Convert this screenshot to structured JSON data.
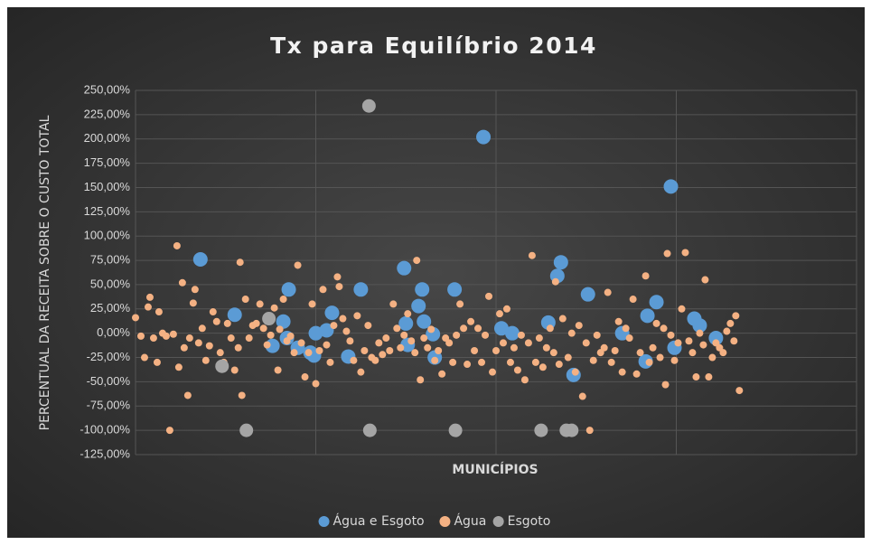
{
  "chart_data": {
    "type": "scatter",
    "title": "Tx para Equilíbrio 2014",
    "x_label": "MUNICÍPIOS",
    "y_label": "PERCENTUAL DA RECEITA SOBRE O CUSTO TOTAL",
    "xlim": [
      0,
      400
    ],
    "xticks": [
      0,
      100,
      200,
      300,
      400
    ],
    "ylim": [
      -125,
      250
    ],
    "yticks": [
      {
        "value": 250,
        "label": "250,00%"
      },
      {
        "value": 225,
        "label": "225,00%"
      },
      {
        "value": 200,
        "label": "200,00%"
      },
      {
        "value": 175,
        "label": "175,00%"
      },
      {
        "value": 150,
        "label": "150,00%"
      },
      {
        "value": 125,
        "label": "125,00%"
      },
      {
        "value": 100,
        "label": "100,00%"
      },
      {
        "value": 75,
        "label": "75,00%"
      },
      {
        "value": 50,
        "label": "50,00%"
      },
      {
        "value": 25,
        "label": "25,00%"
      },
      {
        "value": 0,
        "label": "0,00%"
      },
      {
        "value": -25,
        "label": "-25,00%"
      },
      {
        "value": -50,
        "label": "-50,00%"
      },
      {
        "value": -75,
        "label": "-75,00%"
      },
      {
        "value": -100,
        "label": "-100,00%"
      },
      {
        "value": -125,
        "label": "-125,00%"
      }
    ],
    "grid": true,
    "legend": "bottom",
    "series": [
      {
        "name": "Água e Esgoto",
        "color": "#5b9bd5",
        "x": [
          36,
          55,
          76,
          82,
          85,
          84,
          90,
          97,
          99,
          100,
          106,
          109,
          118,
          125,
          149,
          150,
          151,
          157,
          159,
          160,
          166,
          165,
          177,
          193,
          203,
          209,
          229,
          234,
          236,
          243,
          251,
          270,
          283,
          284,
          289,
          297,
          299,
          310,
          313,
          322
        ],
        "values": [
          76,
          19,
          -13,
          12,
          45,
          -5,
          -15,
          -20,
          -23,
          0,
          3,
          21,
          -24,
          45,
          67,
          10,
          -12,
          28,
          45,
          12,
          -25,
          -1,
          45,
          202,
          5,
          0,
          11,
          59,
          73,
          -43,
          40,
          0,
          -29,
          18,
          32,
          151,
          -15,
          15,
          8,
          -5
        ]
      },
      {
        "name": "Água",
        "color": "#f4b183",
        "x": [
          0,
          3,
          5,
          7,
          8,
          10,
          12,
          13,
          15,
          17,
          19,
          21,
          23,
          24,
          26,
          27,
          29,
          30,
          32,
          33,
          35,
          37,
          39,
          41,
          43,
          45,
          47,
          49,
          51,
          53,
          55,
          57,
          58,
          59,
          61,
          63,
          65,
          67,
          69,
          71,
          73,
          75,
          77,
          79,
          80,
          82,
          84,
          86,
          88,
          90,
          92,
          94,
          96,
          98,
          100,
          102,
          104,
          106,
          108,
          110,
          112,
          113,
          115,
          117,
          119,
          121,
          123,
          125,
          127,
          129,
          131,
          133,
          135,
          137,
          139,
          141,
          143,
          145,
          147,
          149,
          151,
          153,
          155,
          156,
          158,
          160,
          162,
          164,
          166,
          168,
          170,
          172,
          174,
          176,
          178,
          180,
          182,
          184,
          186,
          188,
          190,
          192,
          194,
          196,
          198,
          200,
          202,
          204,
          206,
          208,
          210,
          212,
          214,
          216,
          218,
          220,
          222,
          224,
          226,
          228,
          230,
          232,
          233,
          235,
          237,
          238,
          240,
          242,
          244,
          246,
          248,
          250,
          252,
          254,
          256,
          258,
          260,
          262,
          264,
          266,
          268,
          270,
          272,
          274,
          276,
          278,
          280,
          283,
          285,
          287,
          289,
          291,
          293,
          294,
          295,
          297,
          299,
          301,
          303,
          305,
          307,
          309,
          311,
          313,
          315,
          316,
          318,
          320,
          322,
          324,
          326,
          328,
          330,
          332,
          333,
          335
        ],
        "values": [
          16,
          -3,
          -25,
          27,
          37,
          -5,
          -30,
          22,
          0,
          -3,
          -100,
          -1,
          90,
          -35,
          52,
          -15,
          -64,
          -5,
          31,
          45,
          -10,
          5,
          -28,
          -13,
          22,
          12,
          -20,
          -30,
          10,
          -5,
          -38,
          -15,
          73,
          -64,
          35,
          -5,
          8,
          10,
          30,
          5,
          -12,
          -2,
          26,
          -38,
          4,
          35,
          -8,
          -3,
          -20,
          70,
          -10,
          -45,
          -20,
          30,
          -52,
          -18,
          45,
          -12,
          -30,
          8,
          58,
          48,
          15,
          2,
          -8,
          -28,
          18,
          -40,
          -18,
          8,
          -25,
          -28,
          -10,
          -22,
          -5,
          -18,
          30,
          5,
          -15,
          -2,
          20,
          -8,
          -20,
          75,
          -48,
          -5,
          -15,
          4,
          -28,
          -18,
          -42,
          -5,
          -10,
          -30,
          -2,
          30,
          5,
          -32,
          12,
          -18,
          5,
          -30,
          -2,
          38,
          -40,
          -18,
          20,
          -10,
          25,
          -30,
          -15,
          -38,
          -2,
          -48,
          -10,
          80,
          -30,
          -5,
          -35,
          -15,
          5,
          -20,
          53,
          -32,
          15,
          -100,
          -25,
          0,
          -40,
          8,
          -65,
          -10,
          -100,
          -28,
          -2,
          -20,
          -15,
          42,
          -30,
          -18,
          12,
          -40,
          5,
          -5,
          35,
          -42,
          -20,
          59,
          -30,
          -15,
          10,
          -25,
          5,
          -53,
          82,
          -2,
          -28,
          -10,
          25,
          83,
          -8,
          -20,
          -45,
          0,
          -12,
          55,
          -45,
          -25,
          -10,
          -15,
          -20,
          2,
          10,
          -8,
          18,
          -59
        ]
      },
      {
        "name": "Esgoto",
        "color": "#a5a5a5",
        "x": [
          129.5,
          48,
          61.5,
          74,
          130,
          177.5,
          225,
          239,
          242
        ],
        "values": [
          234,
          -34,
          -100,
          15,
          -100,
          -100,
          -100,
          -100,
          -100
        ]
      }
    ]
  }
}
